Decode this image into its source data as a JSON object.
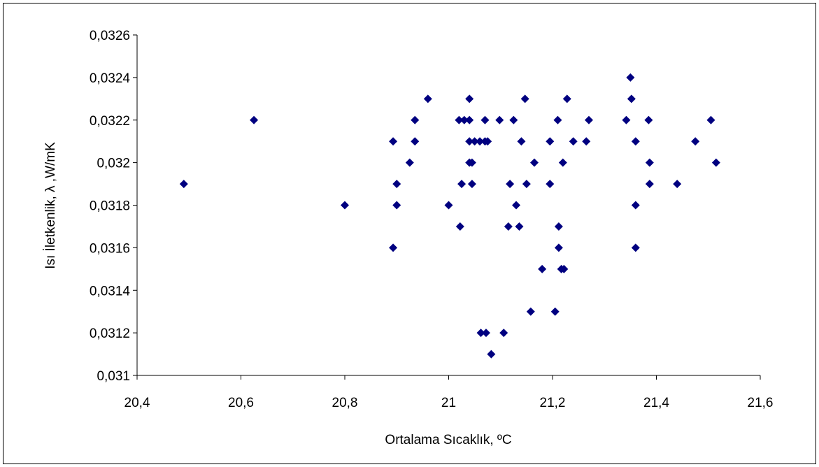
{
  "chart_data": {
    "type": "scatter",
    "xlabel": "Ortalama Sıcaklık, ºC",
    "ylabel": "Isı İletkenlik, λ ,W/mK",
    "xlim": [
      20.4,
      21.6
    ],
    "ylim": [
      0.031,
      0.0326
    ],
    "x_ticks": [
      "20,4",
      "20,6",
      "20,8",
      "21",
      "21,2",
      "21,4",
      "21,6"
    ],
    "y_ticks": [
      "0,031",
      "0,0312",
      "0,0314",
      "0,0316",
      "0,0318",
      "0,032",
      "0,0322",
      "0,0324",
      "0,0326"
    ],
    "x_tick_values": [
      20.4,
      20.6,
      20.8,
      21.0,
      21.2,
      21.4,
      21.6
    ],
    "y_tick_values": [
      0.031,
      0.0312,
      0.0314,
      0.0316,
      0.0318,
      0.032,
      0.0322,
      0.0324,
      0.0326
    ],
    "grid": false,
    "legend": "none",
    "marker_color": "#000080",
    "marker": "diamond",
    "points": [
      [
        20.49,
        0.0319
      ],
      [
        20.625,
        0.0322
      ],
      [
        20.8,
        0.0318
      ],
      [
        20.893,
        0.0321
      ],
      [
        20.893,
        0.0316
      ],
      [
        20.9,
        0.0319
      ],
      [
        20.9,
        0.0318
      ],
      [
        20.925,
        0.032
      ],
      [
        20.935,
        0.0322
      ],
      [
        20.935,
        0.0321
      ],
      [
        20.96,
        0.0323
      ],
      [
        21.0,
        0.0318
      ],
      [
        21.02,
        0.0322
      ],
      [
        21.022,
        0.0317
      ],
      [
        21.025,
        0.0319
      ],
      [
        21.03,
        0.0322
      ],
      [
        21.04,
        0.0323
      ],
      [
        21.04,
        0.0322
      ],
      [
        21.04,
        0.0321
      ],
      [
        21.04,
        0.032
      ],
      [
        21.045,
        0.032
      ],
      [
        21.045,
        0.0319
      ],
      [
        21.05,
        0.0321
      ],
      [
        21.06,
        0.0321
      ],
      [
        21.062,
        0.0312
      ],
      [
        21.07,
        0.0322
      ],
      [
        21.07,
        0.0321
      ],
      [
        21.072,
        0.0312
      ],
      [
        21.075,
        0.0321
      ],
      [
        21.082,
        0.0311
      ],
      [
        21.098,
        0.0322
      ],
      [
        21.106,
        0.0312
      ],
      [
        21.115,
        0.0317
      ],
      [
        21.118,
        0.0319
      ],
      [
        21.125,
        0.0322
      ],
      [
        21.13,
        0.0318
      ],
      [
        21.136,
        0.0317
      ],
      [
        21.14,
        0.0321
      ],
      [
        21.147,
        0.0323
      ],
      [
        21.15,
        0.0319
      ],
      [
        21.158,
        0.0313
      ],
      [
        21.165,
        0.032
      ],
      [
        21.18,
        0.0315
      ],
      [
        21.195,
        0.0319
      ],
      [
        21.195,
        0.0321
      ],
      [
        21.205,
        0.0313
      ],
      [
        21.21,
        0.0322
      ],
      [
        21.212,
        0.0317
      ],
      [
        21.212,
        0.0316
      ],
      [
        21.217,
        0.0315
      ],
      [
        21.22,
        0.032
      ],
      [
        21.222,
        0.0315
      ],
      [
        21.228,
        0.0323
      ],
      [
        21.24,
        0.0321
      ],
      [
        21.265,
        0.0321
      ],
      [
        21.27,
        0.0322
      ],
      [
        21.342,
        0.0322
      ],
      [
        21.35,
        0.0324
      ],
      [
        21.352,
        0.0323
      ],
      [
        21.36,
        0.0321
      ],
      [
        21.36,
        0.0318
      ],
      [
        21.36,
        0.0316
      ],
      [
        21.385,
        0.0322
      ],
      [
        21.387,
        0.032
      ],
      [
        21.387,
        0.0319
      ],
      [
        21.44,
        0.0319
      ],
      [
        21.475,
        0.0321
      ],
      [
        21.505,
        0.0322
      ],
      [
        21.515,
        0.032
      ]
    ]
  }
}
